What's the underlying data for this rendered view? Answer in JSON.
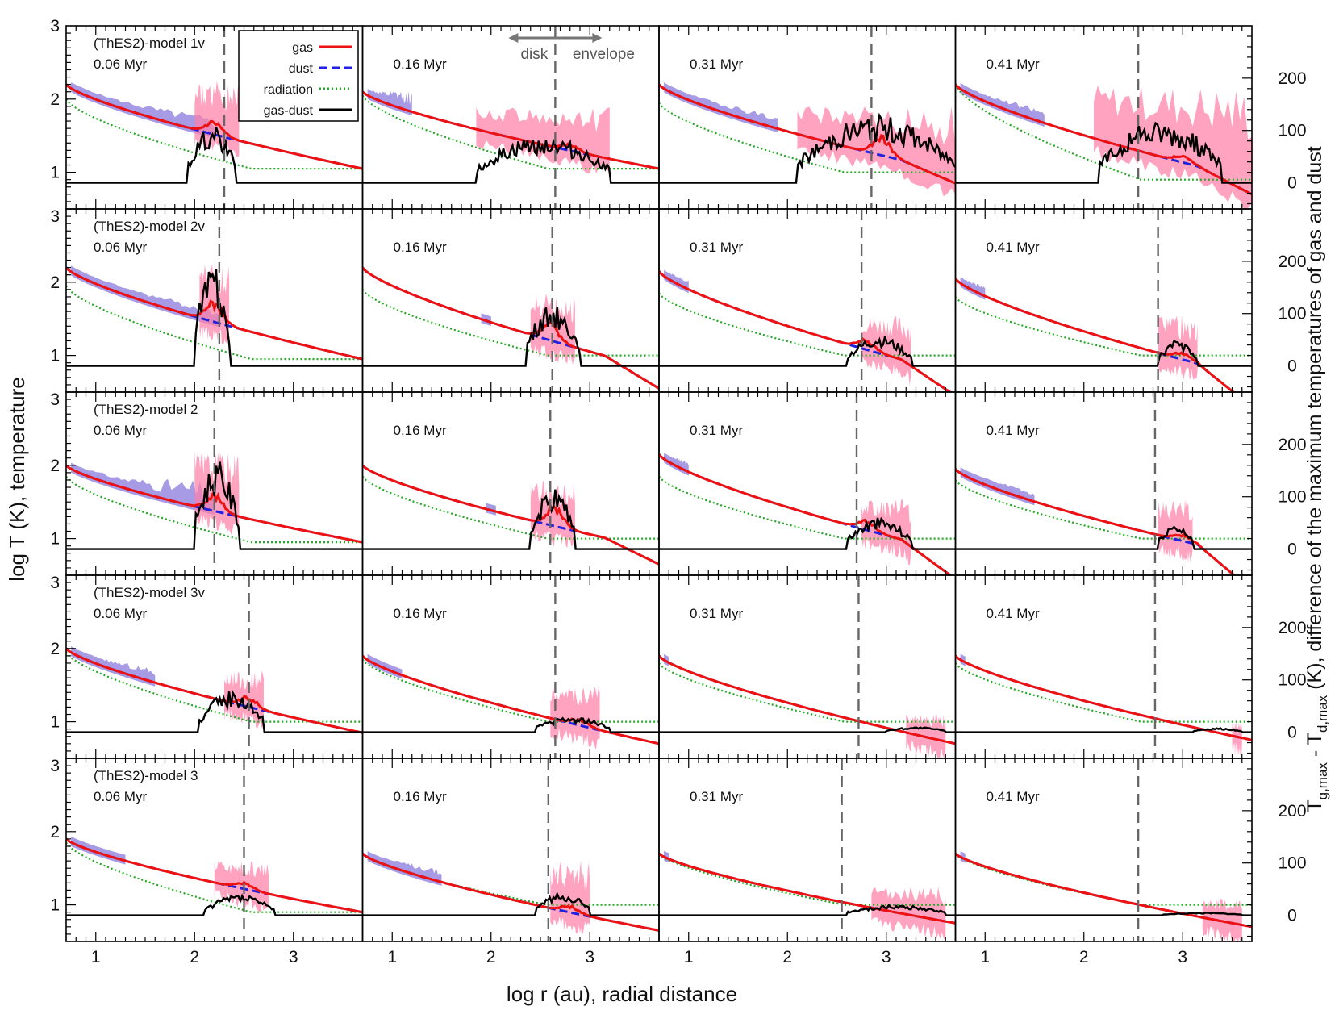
{
  "figure": {
    "xlabel": "log r (au), radial distance",
    "ylabel_left": "log T (K), temperature",
    "ylabel_right_parts": [
      "T",
      "g,max",
      " - T",
      "d,max",
      " (K),  difference of the maximum temperatures of gas and dust"
    ]
  },
  "colors": {
    "gas": "#ee1111",
    "dust": "#2222dd",
    "radiation": "#22aa22",
    "gas_dust": "#000000",
    "band_dust": "#8070d8",
    "band_gas": "#ff7fa8",
    "divider": "#666666"
  },
  "legend": [
    {
      "label": "gas",
      "key": "gas"
    },
    {
      "label": "dust",
      "key": "dust"
    },
    {
      "label": "radiation",
      "key": "radiation"
    },
    {
      "label": "gas-dust",
      "key": "gas_dust"
    }
  ],
  "annotation": {
    "left": "disk",
    "right": "envelope"
  },
  "chart_data": {
    "type": "line",
    "grid_rows": 5,
    "grid_cols": 4,
    "x_range": [
      0.7,
      3.7
    ],
    "x_ticks": [
      1,
      2,
      3
    ],
    "x_tick_labels": [
      "1",
      "2",
      "3"
    ],
    "y_left_ticks": [
      1,
      2,
      3
    ],
    "y_left_tick_labels": [
      "1",
      "2",
      "3"
    ],
    "y_right_ticks": [
      0,
      100,
      200
    ],
    "y_right_tick_labels": [
      "0",
      "100",
      "200"
    ],
    "y_left_range": [
      0.5,
      3.0
    ],
    "y_right_range": [
      -50,
      300
    ],
    "legend_position": "top, first panel",
    "row_models": [
      "(ThES2)-model 1v",
      "(ThES2)-model 2v",
      "(ThES2)-model 2",
      "(ThES2)-model 3v",
      "(ThES2)-model 3"
    ],
    "col_times": [
      "0.06 Myr",
      "0.16 Myr",
      "0.31 Myr",
      "0.41 Myr"
    ],
    "panels": [
      [
        {
          "T0": 2.2,
          "Tend": 1.05,
          "dip": 0,
          "radStart": 2.0,
          "fillEnd": 1.3,
          "gdStart": 1.93,
          "gdEnd": 2.42,
          "gdPeak": 110,
          "disk": 2.3,
          "bumpX": 2.2,
          "bumpH": 0.2,
          "pink": [
            2.0,
            2.45,
            2.25
          ],
          "blue": [
            0.75,
            2.2,
            2.35
          ]
        },
        {
          "T0": 2.1,
          "Tend": 1.05,
          "dip": 0,
          "radStart": 2.05,
          "fillEnd": 1.0,
          "gdStart": 1.85,
          "gdEnd": 3.2,
          "gdPeak": 90,
          "disk": 2.65,
          "bumpX": 2.8,
          "bumpH": 0.1,
          "pink": [
            1.85,
            3.2,
            1.9
          ],
          "blue": [
            0.75,
            1.2,
            2.3
          ]
        },
        {
          "T0": 2.2,
          "Tend": 1.0,
          "dip": 0.15,
          "radStart": 1.95,
          "fillEnd": 1.3,
          "gdStart": 2.1,
          "gdEnd": 3.7,
          "gdPeak": 130,
          "disk": 2.85,
          "bumpX": 2.95,
          "bumpH": 0.3,
          "pink": [
            2.1,
            3.7,
            1.9
          ],
          "blue": [
            0.75,
            1.9,
            2.3
          ]
        },
        {
          "T0": 2.2,
          "Tend": 0.9,
          "dip": 0.2,
          "radStart": 2.2,
          "fillEnd": 1.0,
          "gdStart": 2.15,
          "gdEnd": 3.4,
          "gdPeak": 120,
          "disk": 2.55,
          "bumpX": 3.0,
          "bumpH": 0.1,
          "pink": [
            2.1,
            3.7,
            2.2
          ],
          "blue": [
            0.75,
            1.6,
            2.3
          ]
        }
      ],
      [
        {
          "T0": 2.2,
          "Tend": 0.95,
          "dip": 0,
          "radStart": 1.95,
          "fillEnd": 1.5,
          "gdStart": 2.0,
          "gdEnd": 2.35,
          "gdPeak": 200,
          "disk": 2.25,
          "bumpX": 2.2,
          "bumpH": 0.3,
          "pink": [
            2.05,
            2.35,
            2.3
          ],
          "blue": [
            0.75,
            2.25,
            2.3
          ]
        },
        {
          "T0": 2.2,
          "Tend": 0.8,
          "dip": 0.25,
          "radStart": 1.9,
          "fillEnd": 1.0,
          "gdStart": 2.35,
          "gdEnd": 2.9,
          "gdPeak": 120,
          "disk": 2.62,
          "bumpX": 2.6,
          "bumpH": 0.25,
          "pink": [
            2.4,
            2.85,
            1.85
          ],
          "blue": [
            1.9,
            2.0,
            1.7
          ]
        },
        {
          "T0": 2.15,
          "Tend": 0.75,
          "dip": 0.3,
          "radStart": 1.85,
          "fillEnd": 0.8,
          "gdStart": 2.6,
          "gdEnd": 3.25,
          "gdPeak": 60,
          "disk": 2.75,
          "bumpX": 2.8,
          "bumpH": 0.15,
          "pink": [
            2.75,
            3.25,
            1.55
          ],
          "blue": [
            0.75,
            1.0,
            2.2
          ]
        },
        {
          "T0": 2.05,
          "Tend": 0.7,
          "dip": 0.4,
          "radStart": 1.8,
          "fillEnd": 0.8,
          "gdStart": 2.75,
          "gdEnd": 3.15,
          "gdPeak": 50,
          "disk": 2.75,
          "bumpX": 3.0,
          "bumpH": 0.1,
          "pink": [
            2.75,
            3.15,
            1.55
          ],
          "blue": [
            0.75,
            1.0,
            2.1
          ]
        }
      ],
      [
        {
          "T0": 2.0,
          "Tend": 0.95,
          "dip": 0,
          "radStart": 1.85,
          "fillEnd": 1.5,
          "gdStart": 2.0,
          "gdEnd": 2.45,
          "gdPeak": 170,
          "disk": 2.2,
          "bumpX": 2.2,
          "bumpH": 0.25,
          "pink": [
            2.0,
            2.45,
            2.2
          ],
          "blue": [
            0.75,
            2.2,
            2.3
          ]
        },
        {
          "T0": 2.0,
          "Tend": 0.85,
          "dip": 0.2,
          "radStart": 1.85,
          "fillEnd": 1.3,
          "gdStart": 2.4,
          "gdEnd": 2.85,
          "gdPeak": 120,
          "disk": 2.6,
          "bumpX": 2.65,
          "bumpH": 0.3,
          "pink": [
            2.4,
            2.85,
            1.8
          ],
          "blue": [
            1.95,
            2.05,
            1.6
          ]
        },
        {
          "T0": 2.15,
          "Tend": 0.8,
          "dip": 0.35,
          "radStart": 1.85,
          "fillEnd": 0.8,
          "gdStart": 2.6,
          "gdEnd": 3.25,
          "gdPeak": 60,
          "disk": 2.7,
          "bumpX": 2.8,
          "bumpH": 0.15,
          "pink": [
            2.75,
            3.25,
            1.55
          ],
          "blue": [
            0.75,
            1.0,
            2.2
          ]
        },
        {
          "T0": 1.95,
          "Tend": 0.75,
          "dip": 0.45,
          "radStart": 1.8,
          "fillEnd": 1.4,
          "gdStart": 2.75,
          "gdEnd": 3.1,
          "gdPeak": 50,
          "disk": 2.72,
          "bumpX": 3.0,
          "bumpH": 0.1,
          "pink": [
            2.75,
            3.1,
            1.55
          ],
          "blue": [
            0.75,
            1.5,
            2.0
          ]
        }
      ],
      [
        {
          "T0": 2.0,
          "Tend": 0.85,
          "dip": 0,
          "radStart": 1.95,
          "fillEnd": 1.6,
          "gdStart": 2.05,
          "gdEnd": 2.7,
          "gdPeak": 80,
          "disk": 2.55,
          "bumpX": 2.55,
          "bumpH": 0.15,
          "pink": [
            2.3,
            2.7,
            1.7
          ],
          "blue": [
            0.75,
            1.6,
            2.1
          ]
        },
        {
          "T0": 1.9,
          "Tend": 0.7,
          "dip": 0,
          "radStart": 1.85,
          "fillEnd": 1.4,
          "gdStart": 2.45,
          "gdEnd": 3.2,
          "gdPeak": 30,
          "disk": 2.65,
          "bumpX": 2.9,
          "bumpH": 0.1,
          "pink": [
            2.6,
            3.1,
            1.5
          ],
          "blue": [
            0.75,
            1.1,
            1.9
          ]
        },
        {
          "T0": 1.9,
          "Tend": 0.7,
          "dip": 0,
          "radStart": 1.8,
          "fillEnd": 0.8,
          "gdStart": 3.0,
          "gdEnd": 3.6,
          "gdPeak": 10,
          "disk": 2.72,
          "bumpX": 3.4,
          "bumpH": 0.0,
          "pink": [
            3.2,
            3.6,
            1.1
          ],
          "blue": [
            0.75,
            0.8,
            1.9
          ]
        },
        {
          "T0": 1.9,
          "Tend": 0.75,
          "dip": 0,
          "radStart": 1.8,
          "fillEnd": 0.8,
          "gdStart": 3.1,
          "gdEnd": 3.6,
          "gdPeak": 8,
          "disk": 2.72,
          "bumpX": 3.4,
          "bumpH": 0.0,
          "pink": [
            3.5,
            3.6,
            1.0
          ],
          "blue": [
            0.75,
            0.8,
            1.9
          ]
        }
      ],
      [
        {
          "T0": 1.9,
          "Tend": 0.9,
          "dip": 0,
          "radStart": 1.85,
          "fillEnd": 1.3,
          "gdStart": 2.1,
          "gdEnd": 2.8,
          "gdPeak": 40,
          "disk": 2.5,
          "bumpX": 2.5,
          "bumpH": 0.1,
          "pink": [
            2.2,
            2.75,
            1.6
          ],
          "blue": [
            0.75,
            1.3,
            1.9
          ]
        },
        {
          "T0": 1.7,
          "Tend": 0.65,
          "dip": 0,
          "radStart": 1.7,
          "fillEnd": 1.5,
          "gdStart": 2.45,
          "gdEnd": 3.0,
          "gdPeak": 45,
          "disk": 2.58,
          "bumpX": 2.8,
          "bumpH": 0.1,
          "pink": [
            2.6,
            3.0,
            1.6
          ],
          "blue": [
            0.75,
            1.5,
            1.8
          ]
        },
        {
          "T0": 1.7,
          "Tend": 0.75,
          "dip": 0,
          "radStart": 1.7,
          "fillEnd": 0.8,
          "gdStart": 2.6,
          "gdEnd": 3.6,
          "gdPeak": 20,
          "disk": 2.55,
          "bumpX": 3.2,
          "bumpH": 0.0,
          "pink": [
            2.85,
            3.6,
            1.25
          ],
          "blue": [
            0.75,
            0.8,
            1.7
          ]
        },
        {
          "T0": 1.7,
          "Tend": 0.7,
          "dip": 0,
          "radStart": 1.7,
          "fillEnd": 0.8,
          "gdStart": 2.8,
          "gdEnd": 3.6,
          "gdPeak": 5,
          "disk": 2.55,
          "bumpX": 3.3,
          "bumpH": 0.0,
          "pink": [
            3.2,
            3.6,
            1.1
          ],
          "blue": [
            0.75,
            0.8,
            1.7
          ]
        }
      ]
    ]
  }
}
